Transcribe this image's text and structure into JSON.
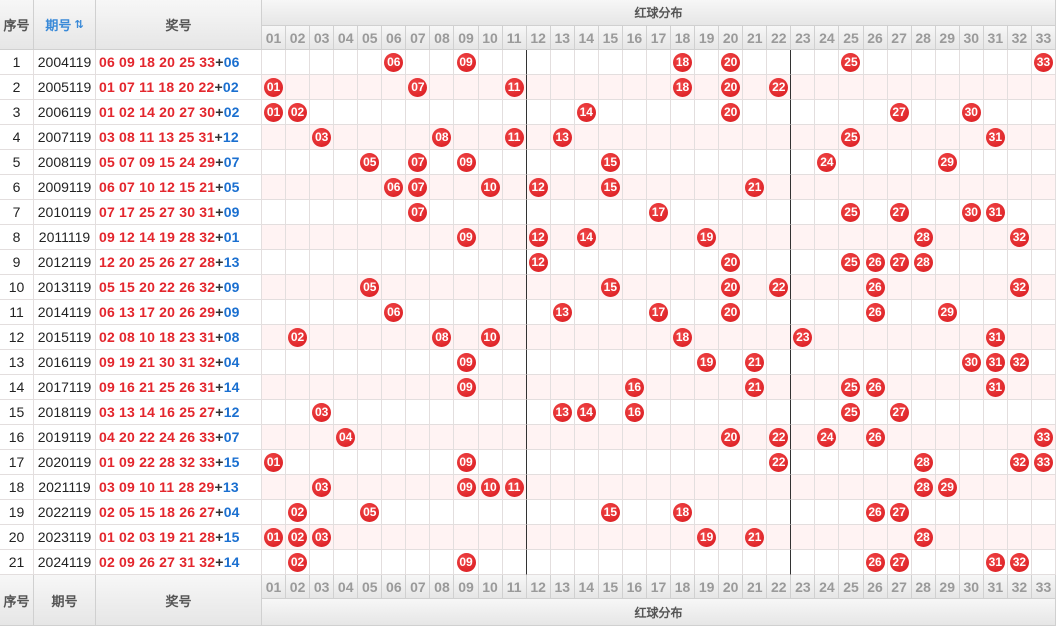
{
  "header": {
    "index_label": "序号",
    "issue_label": "期号",
    "award_label": "奖号",
    "red_title": "红球分布",
    "sort_icon": "sort-icon"
  },
  "red_numbers": [
    "01",
    "02",
    "03",
    "04",
    "05",
    "06",
    "07",
    "08",
    "09",
    "10",
    "11",
    "12",
    "13",
    "14",
    "15",
    "16",
    "17",
    "18",
    "19",
    "20",
    "21",
    "22",
    "23",
    "24",
    "25",
    "26",
    "27",
    "28",
    "29",
    "30",
    "31",
    "32",
    "33"
  ],
  "rows": [
    {
      "index": "1",
      "issue": "2004119",
      "reds": [
        "06",
        "09",
        "18",
        "20",
        "25",
        "33"
      ],
      "blue": "06"
    },
    {
      "index": "2",
      "issue": "2005119",
      "reds": [
        "01",
        "07",
        "11",
        "18",
        "20",
        "22"
      ],
      "blue": "02"
    },
    {
      "index": "3",
      "issue": "2006119",
      "reds": [
        "01",
        "02",
        "14",
        "20",
        "27",
        "30"
      ],
      "blue": "02"
    },
    {
      "index": "4",
      "issue": "2007119",
      "reds": [
        "03",
        "08",
        "11",
        "13",
        "25",
        "31"
      ],
      "blue": "12"
    },
    {
      "index": "5",
      "issue": "2008119",
      "reds": [
        "05",
        "07",
        "09",
        "15",
        "24",
        "29"
      ],
      "blue": "07"
    },
    {
      "index": "6",
      "issue": "2009119",
      "reds": [
        "06",
        "07",
        "10",
        "12",
        "15",
        "21"
      ],
      "blue": "05"
    },
    {
      "index": "7",
      "issue": "2010119",
      "reds": [
        "07",
        "17",
        "25",
        "27",
        "30",
        "31"
      ],
      "blue": "09"
    },
    {
      "index": "8",
      "issue": "2011119",
      "reds": [
        "09",
        "12",
        "14",
        "19",
        "28",
        "32"
      ],
      "blue": "01"
    },
    {
      "index": "9",
      "issue": "2012119",
      "reds": [
        "12",
        "20",
        "25",
        "26",
        "27",
        "28"
      ],
      "blue": "13"
    },
    {
      "index": "10",
      "issue": "2013119",
      "reds": [
        "05",
        "15",
        "20",
        "22",
        "26",
        "32"
      ],
      "blue": "09"
    },
    {
      "index": "11",
      "issue": "2014119",
      "reds": [
        "06",
        "13",
        "17",
        "20",
        "26",
        "29"
      ],
      "blue": "09"
    },
    {
      "index": "12",
      "issue": "2015119",
      "reds": [
        "02",
        "08",
        "10",
        "18",
        "23",
        "31"
      ],
      "blue": "08"
    },
    {
      "index": "13",
      "issue": "2016119",
      "reds": [
        "09",
        "19",
        "21",
        "30",
        "31",
        "32"
      ],
      "blue": "04"
    },
    {
      "index": "14",
      "issue": "2017119",
      "reds": [
        "09",
        "16",
        "21",
        "25",
        "26",
        "31"
      ],
      "blue": "14"
    },
    {
      "index": "15",
      "issue": "2018119",
      "reds": [
        "03",
        "13",
        "14",
        "16",
        "25",
        "27"
      ],
      "blue": "12"
    },
    {
      "index": "16",
      "issue": "2019119",
      "reds": [
        "04",
        "20",
        "22",
        "24",
        "26",
        "33"
      ],
      "blue": "07"
    },
    {
      "index": "17",
      "issue": "2020119",
      "reds": [
        "01",
        "09",
        "22",
        "28",
        "32",
        "33"
      ],
      "blue": "15"
    },
    {
      "index": "18",
      "issue": "2021119",
      "reds": [
        "03",
        "09",
        "10",
        "11",
        "28",
        "29"
      ],
      "blue": "13"
    },
    {
      "index": "19",
      "issue": "2022119",
      "reds": [
        "02",
        "05",
        "15",
        "18",
        "26",
        "27"
      ],
      "blue": "04"
    },
    {
      "index": "20",
      "issue": "2023119",
      "reds": [
        "01",
        "02",
        "03",
        "19",
        "21",
        "28"
      ],
      "blue": "15"
    },
    {
      "index": "21",
      "issue": "2024119",
      "reds": [
        "02",
        "09",
        "26",
        "27",
        "31",
        "32"
      ],
      "blue": "14"
    }
  ],
  "colors": {
    "ball": "#e3262d",
    "blue_ball": "#1a6fd0",
    "issue_header": "#3a8ad8",
    "row_alt": "#fff3f3"
  }
}
